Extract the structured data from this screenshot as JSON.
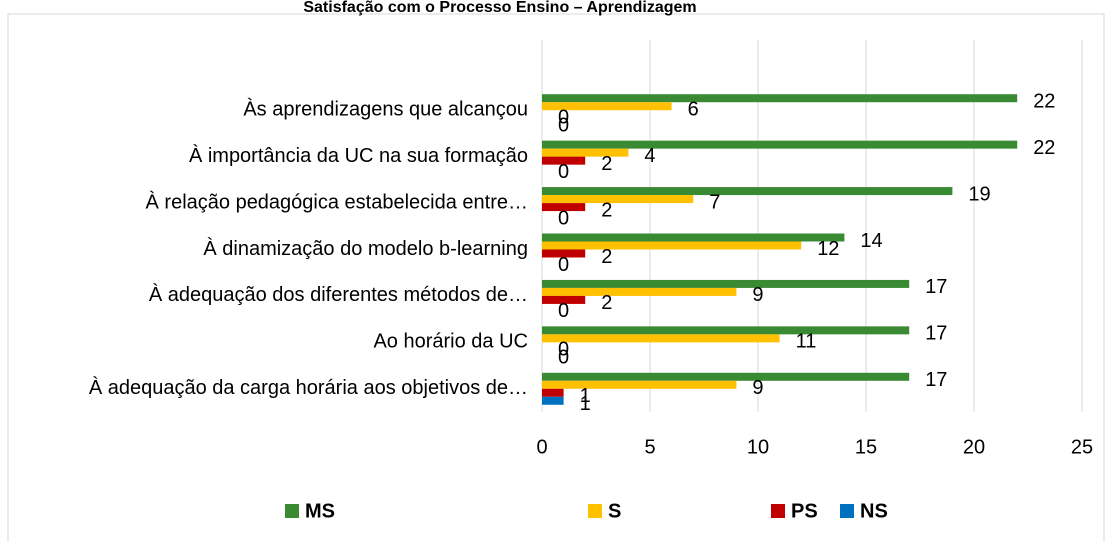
{
  "chart_data": {
    "type": "bar",
    "orientation": "horizontal",
    "title": "Satisfação com o Processo Ensino – Aprendizagem",
    "categories": [
      "Às aprendizagens que alcançou",
      "À importância da UC na sua formação",
      "À relação pedagógica estabelecida entre…",
      "À dinamização do modelo b-learning",
      "À adequação dos diferentes métodos de…",
      "Ao horário da UC",
      "À adequação da carga horária aos objetivos de…"
    ],
    "series": [
      {
        "name": "MS",
        "color": "#3a8a34",
        "values": [
          22,
          22,
          19,
          14,
          17,
          17,
          17
        ]
      },
      {
        "name": "S",
        "color": "#ffc000",
        "values": [
          6,
          4,
          7,
          12,
          9,
          11,
          9
        ]
      },
      {
        "name": "PS",
        "color": "#c00000",
        "values": [
          0,
          2,
          2,
          2,
          2,
          0,
          1
        ]
      },
      {
        "name": "NS",
        "color": "#0070c0",
        "values": [
          0,
          0,
          0,
          0,
          0,
          0,
          1
        ]
      }
    ],
    "xlim": [
      0,
      25
    ],
    "xticks": [
      0,
      5,
      10,
      15,
      20,
      25
    ],
    "grid": true,
    "legend": "bottom"
  }
}
